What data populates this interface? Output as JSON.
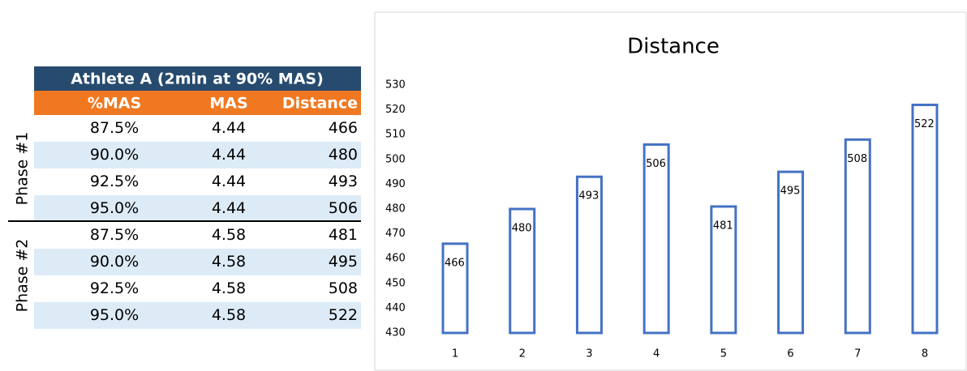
{
  "table": {
    "title": "Athlete A (2min at 90% MAS)",
    "headers": [
      "%MAS",
      "MAS",
      "Distance"
    ],
    "phases": [
      "Phase #1",
      "Phase #2"
    ],
    "rows": [
      [
        "87.5%",
        "4.44",
        "466"
      ],
      [
        "90.0%",
        "4.44",
        "480"
      ],
      [
        "92.5%",
        "4.44",
        "493"
      ],
      [
        "95.0%",
        "4.44",
        "506"
      ],
      [
        "87.5%",
        "4.58",
        "481"
      ],
      [
        "90.0%",
        "4.58",
        "495"
      ],
      [
        "92.5%",
        "4.58",
        "508"
      ],
      [
        "95.0%",
        "4.58",
        "522"
      ]
    ]
  },
  "chart_data": {
    "type": "bar",
    "title": "Distance",
    "categories": [
      "1",
      "2",
      "3",
      "4",
      "5",
      "6",
      "7",
      "8"
    ],
    "values": [
      466,
      480,
      493,
      506,
      481,
      495,
      508,
      522
    ],
    "color": "#4472c4",
    "ylim": [
      430,
      530
    ],
    "yticks": [
      430,
      440,
      450,
      460,
      470,
      480,
      490,
      500,
      510,
      520,
      530
    ]
  }
}
